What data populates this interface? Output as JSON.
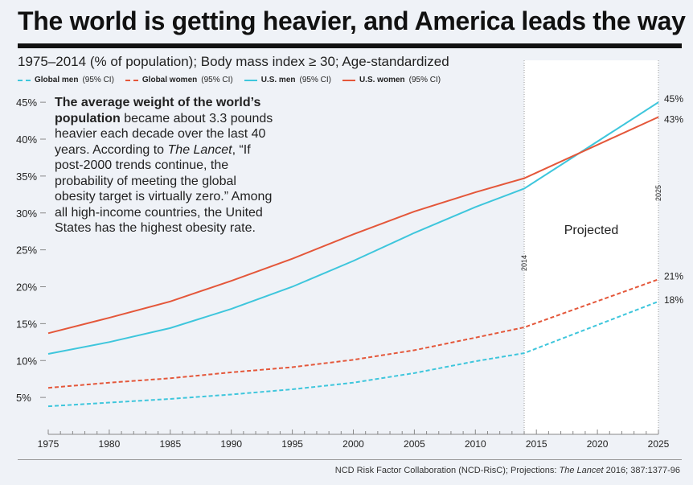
{
  "title": "The world is getting heavier, and America leads the way",
  "subtitle": "1975–2014 (% of population); Body mass index ≥ 30; Age-standardized",
  "note": {
    "bold": "The average weight of the world’s population",
    "text1": " became about 3.3 pounds heavier each decade over the last 40 years. According to ",
    "italic": "The Lancet",
    "text2": ", “If post-2000 trends continue, the probability of meeting the global obesity target is virtually zero.” Among all high-income countries, the United States has the highest obesity rate."
  },
  "source": {
    "text1": "NCD Risk Factor Collaboration (NCD-RisC); Projections: ",
    "italic": "The Lancet",
    "text2": "  2016; 387:1377-96"
  },
  "chart_data": {
    "type": "line",
    "xlim": [
      1975,
      2025
    ],
    "ylim": [
      0,
      47
    ],
    "xticks": [
      1975,
      1980,
      1985,
      1990,
      1995,
      2000,
      2005,
      2010,
      2015,
      2020,
      2025
    ],
    "yticks": [
      5,
      10,
      15,
      20,
      25,
      30,
      35,
      40,
      45
    ],
    "ytick_suffix": "%",
    "projection": {
      "start": 2014,
      "end": 2025,
      "label": "Projected",
      "start_label": "2014",
      "end_label": "2025"
    },
    "x": [
      1975,
      1980,
      1985,
      1990,
      1995,
      2000,
      2005,
      2010,
      2014,
      2025
    ],
    "series": [
      {
        "name": "Global men",
        "ci": "(95% CI)",
        "color": "#3ec6dc",
        "dashed": true,
        "values": [
          3.8,
          4.3,
          4.8,
          5.4,
          6.1,
          7.0,
          8.3,
          9.9,
          11.0,
          18
        ],
        "end_label": "18%"
      },
      {
        "name": "Global women",
        "ci": "(95% CI)",
        "color": "#e4573a",
        "dashed": true,
        "values": [
          6.3,
          7.0,
          7.6,
          8.4,
          9.1,
          10.1,
          11.4,
          13.1,
          14.5,
          21
        ],
        "end_label": "21%"
      },
      {
        "name": "U.S. men",
        "ci": "(95% CI)",
        "color": "#3ec6dc",
        "dashed": false,
        "values": [
          10.9,
          12.5,
          14.4,
          17.0,
          20.0,
          23.5,
          27.3,
          30.8,
          33.3,
          45
        ],
        "end_label": "45%"
      },
      {
        "name": "U.S. women",
        "ci": "(95% CI)",
        "color": "#e4573a",
        "dashed": false,
        "values": [
          13.7,
          15.8,
          18.0,
          20.8,
          23.8,
          27.1,
          30.2,
          32.8,
          34.7,
          43
        ],
        "end_label": "43%"
      }
    ]
  }
}
